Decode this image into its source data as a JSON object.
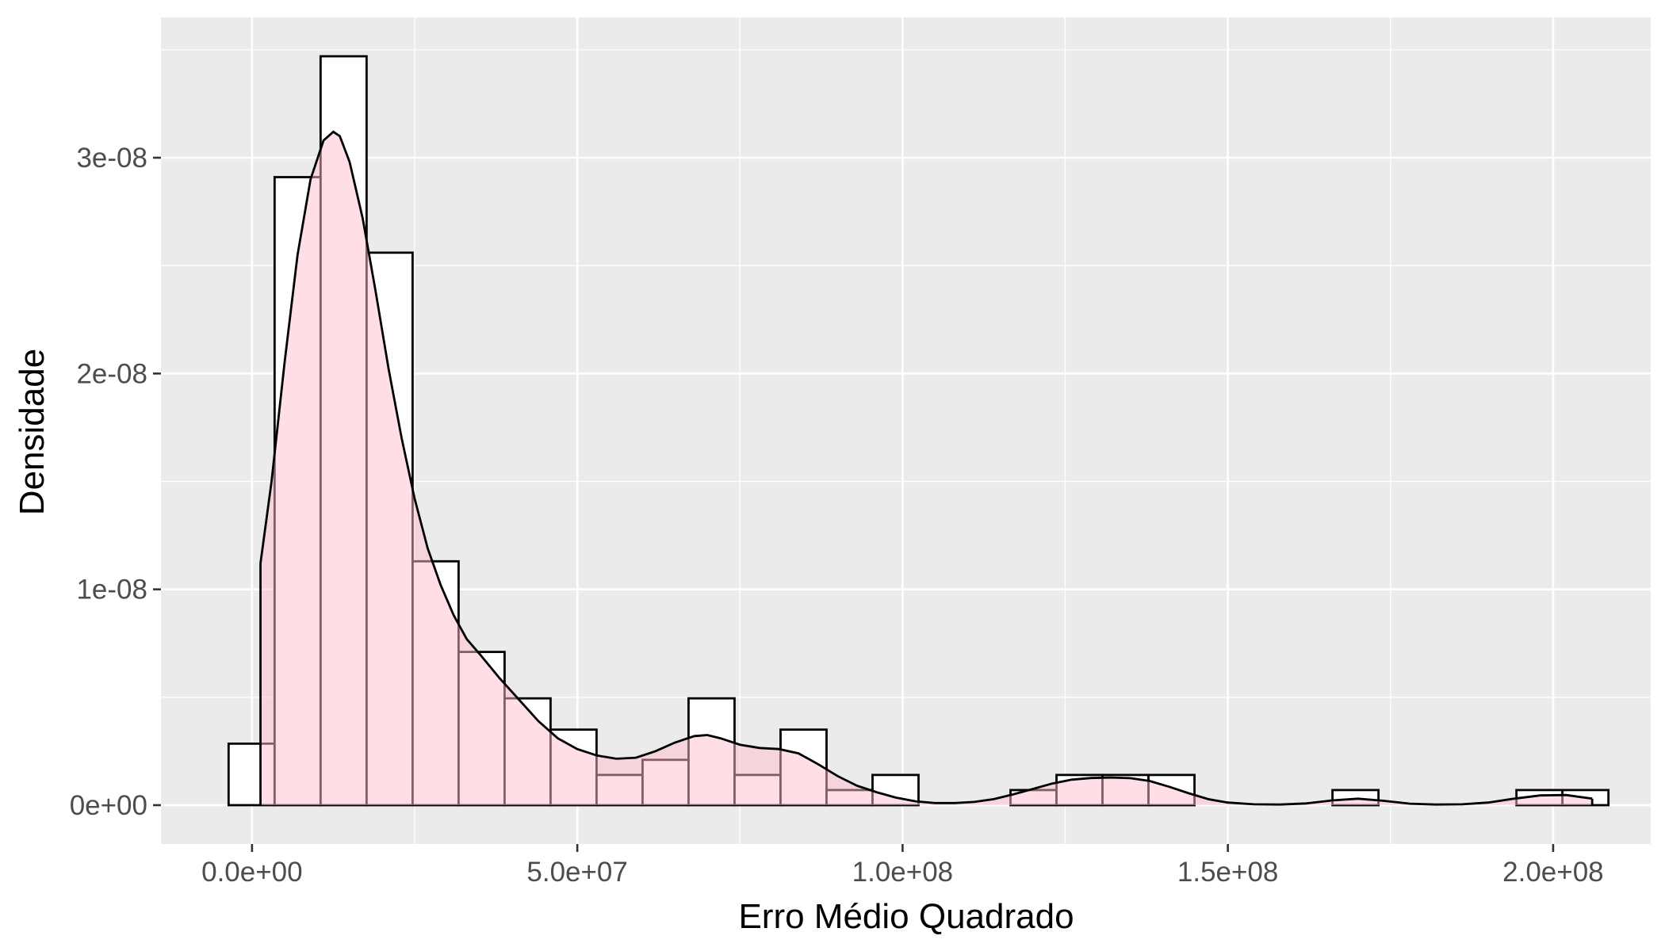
{
  "chart_data": {
    "type": "histogram",
    "title": "",
    "xlabel": "Erro Médio Quadrado",
    "ylabel": "Densidade",
    "xlim": [
      -14000000,
      215000000
    ],
    "ylim": [
      -1.8e-09,
      3.65e-08
    ],
    "x_ticks": [
      {
        "value": 0,
        "label": "0.0e+00"
      },
      {
        "value": 50000000,
        "label": "5.0e+07"
      },
      {
        "value": 100000000,
        "label": "1.0e+08"
      },
      {
        "value": 150000000,
        "label": "1.5e+08"
      },
      {
        "value": 200000000,
        "label": "2.0e+08"
      }
    ],
    "y_ticks": [
      {
        "value": 0,
        "label": "0e+00"
      },
      {
        "value": 1e-08,
        "label": "1e-08"
      },
      {
        "value": 2e-08,
        "label": "2e-08"
      },
      {
        "value": 3e-08,
        "label": "3e-08"
      }
    ],
    "grid": true,
    "histogram": {
      "description": "bins of width ~7.07e6, outlined black, white fill",
      "bin_width": 7070000,
      "bins": [
        {
          "x0": -3600000,
          "height": 2.85e-09
        },
        {
          "x0": 3470000,
          "height": 2.91e-08
        },
        {
          "x0": 10540000,
          "height": 3.47e-08
        },
        {
          "x0": 17610000,
          "height": 2.56e-08
        },
        {
          "x0": 24680000,
          "height": 1.13e-08
        },
        {
          "x0": 31750000,
          "height": 7.1e-09
        },
        {
          "x0": 38820000,
          "height": 4.95e-09
        },
        {
          "x0": 45890000,
          "height": 3.5e-09
        },
        {
          "x0": 52960000,
          "height": 1.4e-09
        },
        {
          "x0": 60030000,
          "height": 2.1e-09
        },
        {
          "x0": 67100000,
          "height": 4.95e-09
        },
        {
          "x0": 74170000,
          "height": 1.4e-09
        },
        {
          "x0": 81240000,
          "height": 3.5e-09
        },
        {
          "x0": 88310000,
          "height": 7e-10
        },
        {
          "x0": 95380000,
          "height": 1.4e-09
        },
        {
          "x0": 102450000,
          "height": 0
        },
        {
          "x0": 109520000,
          "height": 0
        },
        {
          "x0": 116590000,
          "height": 7e-10
        },
        {
          "x0": 123660000,
          "height": 1.4e-09
        },
        {
          "x0": 130730000,
          "height": 1.4e-09
        },
        {
          "x0": 137800000,
          "height": 1.4e-09
        },
        {
          "x0": 144870000,
          "height": 0
        },
        {
          "x0": 151940000,
          "height": 0
        },
        {
          "x0": 159010000,
          "height": 0
        },
        {
          "x0": 166080000,
          "height": 7e-10
        },
        {
          "x0": 173150000,
          "height": 0
        },
        {
          "x0": 180220000,
          "height": 0
        },
        {
          "x0": 187290000,
          "height": 0
        },
        {
          "x0": 194360000,
          "height": 7e-10
        },
        {
          "x0": 201430000,
          "height": 7e-10
        }
      ]
    },
    "density": {
      "fill_color": "#ffc0cb",
      "fill_opacity": 0.5,
      "line_color": "#000000",
      "x": [
        1300000,
        3000000,
        5000000,
        7000000,
        9000000,
        11000000,
        12500000,
        13500000,
        15000000,
        17000000,
        19000000,
        21000000,
        23000000,
        25000000,
        27000000,
        29000000,
        31000000,
        33000000,
        35000000,
        38000000,
        41000000,
        44000000,
        47000000,
        50000000,
        53000000,
        56000000,
        59000000,
        62000000,
        65000000,
        68000000,
        70000000,
        72000000,
        75000000,
        78000000,
        81000000,
        84000000,
        87000000,
        90000000,
        93000000,
        96000000,
        99000000,
        102000000,
        105000000,
        108000000,
        111000000,
        114000000,
        117000000,
        120000000,
        123000000,
        126000000,
        129000000,
        132000000,
        135000000,
        138000000,
        141000000,
        144000000,
        147000000,
        150000000,
        154000000,
        158000000,
        162000000,
        166000000,
        170000000,
        174000000,
        178000000,
        182000000,
        186000000,
        190000000,
        194000000,
        198000000,
        202000000,
        206000000
      ],
      "y": [
        1.12e-08,
        1.5e-08,
        2.05e-08,
        2.55e-08,
        2.9e-08,
        3.08e-08,
        3.12e-08,
        3.1e-08,
        2.98e-08,
        2.72e-08,
        2.38e-08,
        2.02e-08,
        1.7e-08,
        1.42e-08,
        1.19e-08,
        1.02e-08,
        8.8e-09,
        7.7e-09,
        7e-09,
        5.9e-09,
        4.9e-09,
        3.9e-09,
        3.1e-09,
        2.6e-09,
        2.3e-09,
        2.15e-09,
        2.2e-09,
        2.5e-09,
        2.9e-09,
        3.2e-09,
        3.25e-09,
        3.1e-09,
        2.8e-09,
        2.65e-09,
        2.6e-09,
        2.4e-09,
        1.9e-09,
        1.35e-09,
        9e-10,
        6e-10,
        3.5e-10,
        1.8e-10,
        1e-10,
        1e-10,
        1.5e-10,
        2.8e-10,
        5e-10,
        7.5e-10,
        1e-09,
        1.18e-09,
        1.26e-09,
        1.28e-09,
        1.25e-09,
        1.12e-09,
        8.5e-10,
        5.5e-10,
        2.8e-10,
        1.2e-10,
        4e-11,
        3e-11,
        8e-11,
        2.2e-10,
        3e-10,
        2e-10,
        7e-11,
        3e-11,
        4e-11,
        1.2e-10,
        3e-10,
        4.5e-10,
        4.7e-10,
        3e-10
      ]
    }
  }
}
